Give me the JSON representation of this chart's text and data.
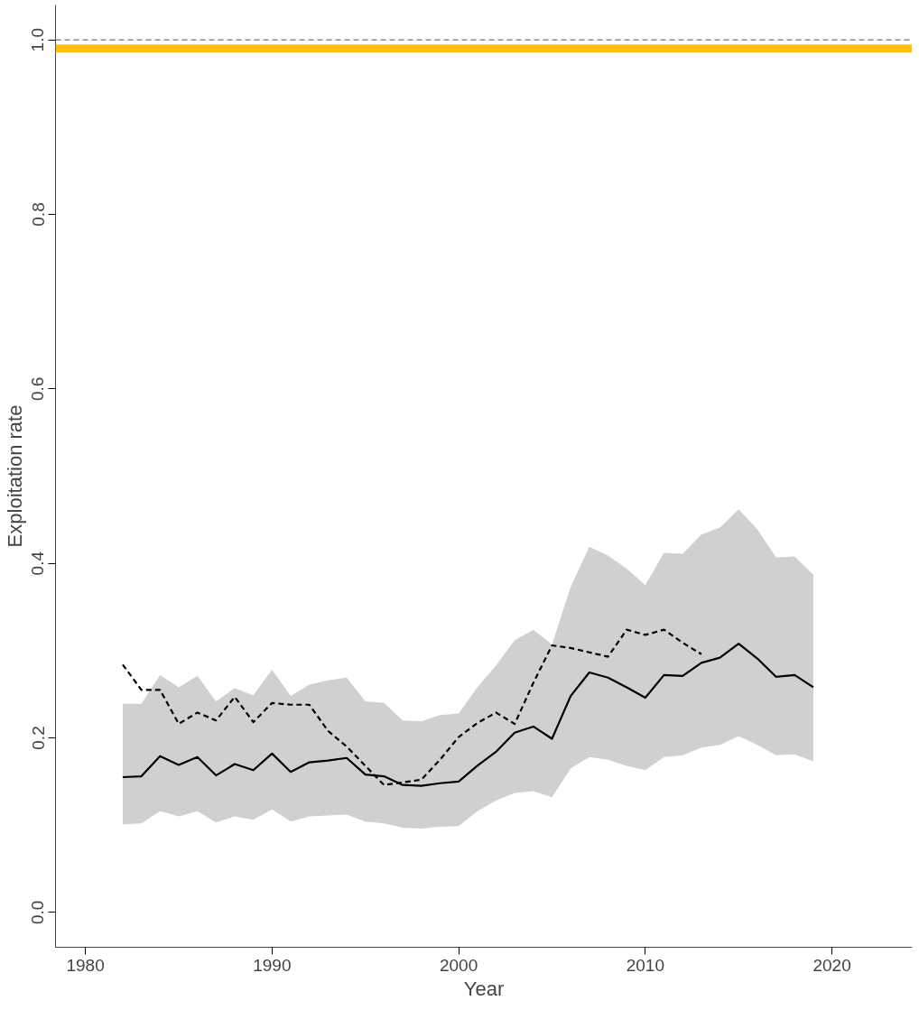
{
  "chart_data": {
    "type": "line",
    "xlabel": "Year",
    "ylabel": "Exploitation rate",
    "x": [
      1982,
      1983,
      1984,
      1985,
      1986,
      1987,
      1988,
      1989,
      1990,
      1991,
      1992,
      1993,
      1994,
      1995,
      1996,
      1997,
      1998,
      1999,
      2000,
      2001,
      2002,
      2003,
      2004,
      2005,
      2006,
      2007,
      2008,
      2009,
      2010,
      2011,
      2012,
      2013,
      2014,
      2015,
      2016,
      2017,
      2018,
      2019
    ],
    "series": [
      {
        "color": "#000000",
        "line_style": "solid",
        "values": [
          0.155,
          0.156,
          0.179,
          0.169,
          0.178,
          0.157,
          0.17,
          0.163,
          0.182,
          0.161,
          0.172,
          0.174,
          0.177,
          0.158,
          0.156,
          0.146,
          0.145,
          0.148,
          0.15,
          0.168,
          0.184,
          0.206,
          0.213,
          0.199,
          0.248,
          0.275,
          0.269,
          0.258,
          0.246,
          0.272,
          0.271,
          0.286,
          0.292,
          0.308,
          0.291,
          0.27,
          0.272,
          0.258
        ],
        "lower": [
          0.101,
          0.102,
          0.116,
          0.11,
          0.116,
          0.103,
          0.11,
          0.106,
          0.118,
          0.104,
          0.11,
          0.111,
          0.112,
          0.104,
          0.102,
          0.097,
          0.096,
          0.098,
          0.099,
          0.116,
          0.128,
          0.137,
          0.139,
          0.132,
          0.165,
          0.178,
          0.175,
          0.168,
          0.163,
          0.178,
          0.18,
          0.189,
          0.192,
          0.202,
          0.192,
          0.18,
          0.181,
          0.173
        ],
        "upper": [
          0.239,
          0.239,
          0.272,
          0.258,
          0.271,
          0.242,
          0.257,
          0.249,
          0.278,
          0.248,
          0.261,
          0.266,
          0.269,
          0.242,
          0.24,
          0.22,
          0.219,
          0.226,
          0.228,
          0.258,
          0.283,
          0.312,
          0.324,
          0.307,
          0.373,
          0.419,
          0.409,
          0.394,
          0.375,
          0.412,
          0.411,
          0.433,
          0.441,
          0.462,
          0.439,
          0.407,
          0.408,
          0.387
        ]
      },
      {
        "color": "#000000",
        "line_style": "dashed",
        "values": [
          0.284,
          0.255,
          0.255,
          0.216,
          0.229,
          0.22,
          0.247,
          0.218,
          0.24,
          0.238,
          0.238,
          0.208,
          0.19,
          0.168,
          0.146,
          0.149,
          0.152,
          0.175,
          0.201,
          0.217,
          0.229,
          0.216,
          0.263,
          0.306,
          0.303,
          0.298,
          0.293,
          0.324,
          0.318,
          0.324,
          0.309,
          0.296,
          null,
          null,
          null,
          null,
          null,
          null
        ]
      }
    ],
    "xlim": [
      1978.4,
      2024.3
    ],
    "ylim": [
      -0.04,
      1.04
    ],
    "xticks": [
      1980,
      1990,
      2000,
      2010,
      2020
    ],
    "yticks": [
      {
        "value": 0,
        "label": "0.0"
      },
      0.2,
      0.4,
      0.6,
      0.8,
      {
        "value": 1,
        "label": "1.0"
      }
    ],
    "ref_lines": [
      {
        "axis": "y",
        "value": 1.0,
        "color": "#888888",
        "line_style": "dashed"
      },
      {
        "axis": "y",
        "value": 0.99,
        "color": "#ffc000",
        "line_style": "solid"
      }
    ],
    "grid": false
  }
}
